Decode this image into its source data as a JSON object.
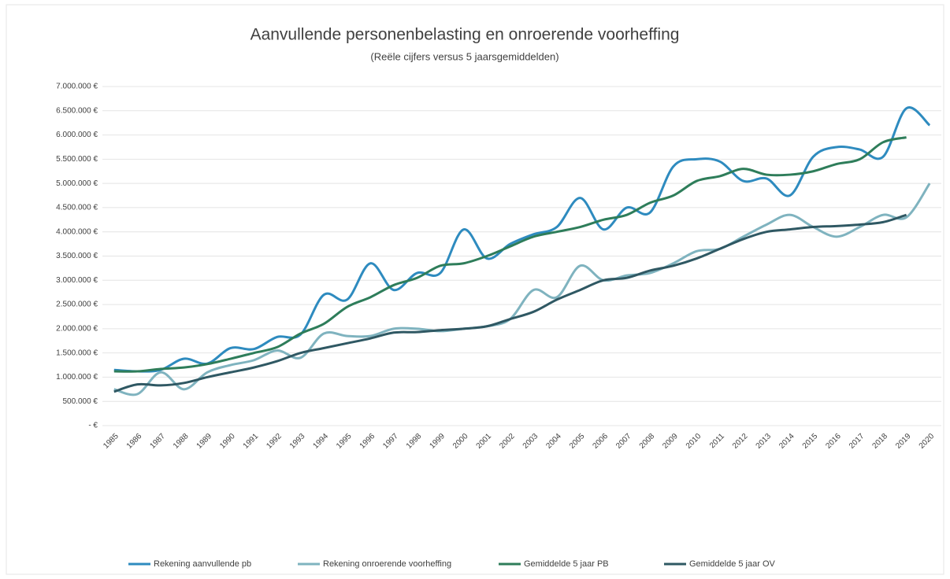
{
  "chart_data": {
    "type": "line",
    "title": "Aanvullende personenbelasting en onroerende voorheffing",
    "subtitle": "(Reële cijfers versus 5 jaarsgemiddelden)",
    "categories": [
      "1985",
      "1986",
      "1987",
      "1988",
      "1989",
      "1990",
      "1991",
      "1992",
      "1993",
      "1994",
      "1995",
      "1996",
      "1997",
      "1998",
      "1999",
      "2000",
      "2001",
      "2002",
      "2003",
      "2004",
      "2005",
      "2006",
      "2007",
      "2008",
      "2009",
      "2010",
      "2011",
      "2012",
      "2013",
      "2014",
      "2015",
      "2016",
      "2017",
      "2018",
      "2019",
      "2020"
    ],
    "series": [
      {
        "name": "Rekening aanvullende pb",
        "color": "#2e8bbf",
        "values": [
          1150000,
          1120000,
          1150000,
          1380000,
          1280000,
          1600000,
          1580000,
          1830000,
          1880000,
          2700000,
          2600000,
          3350000,
          2800000,
          3150000,
          3150000,
          4050000,
          3450000,
          3750000,
          3950000,
          4100000,
          4700000,
          4050000,
          4500000,
          4400000,
          5350000,
          5500000,
          5450000,
          5050000,
          5100000,
          4750000,
          5550000,
          5750000,
          5700000,
          5550000,
          6550000,
          6200000
        ]
      },
      {
        "name": "Rekening onroerende voorheffing",
        "color": "#7fb3bf",
        "values": [
          750000,
          650000,
          1100000,
          750000,
          1100000,
          1250000,
          1350000,
          1550000,
          1400000,
          1900000,
          1850000,
          1850000,
          2000000,
          2000000,
          1950000,
          2000000,
          2050000,
          2200000,
          2800000,
          2650000,
          3300000,
          3000000,
          3100000,
          3150000,
          3350000,
          3600000,
          3650000,
          3900000,
          4150000,
          4350000,
          4100000,
          3900000,
          4100000,
          4350000,
          4300000,
          5000000
        ]
      },
      {
        "name": "Gemiddelde 5 jaar PB",
        "color": "#2e7d5a",
        "values": [
          1120000,
          1120000,
          1170000,
          1200000,
          1270000,
          1380000,
          1500000,
          1620000,
          1900000,
          2100000,
          2450000,
          2650000,
          2900000,
          3050000,
          3300000,
          3350000,
          3500000,
          3700000,
          3900000,
          4000000,
          4100000,
          4250000,
          4350000,
          4600000,
          4750000,
          5050000,
          5150000,
          5300000,
          5180000,
          5180000,
          5250000,
          5400000,
          5500000,
          5850000,
          5950000,
          null
        ]
      },
      {
        "name": "Gemiddelde 5 jaar OV",
        "color": "#2f5863",
        "values": [
          700000,
          850000,
          830000,
          880000,
          1000000,
          1100000,
          1200000,
          1330000,
          1500000,
          1600000,
          1700000,
          1800000,
          1920000,
          1930000,
          1970000,
          2000000,
          2050000,
          2200000,
          2350000,
          2600000,
          2800000,
          3000000,
          3050000,
          3200000,
          3300000,
          3450000,
          3650000,
          3850000,
          4000000,
          4050000,
          4100000,
          4120000,
          4150000,
          4200000,
          4350000,
          null
        ]
      }
    ],
    "ylim": [
      0,
      7000000
    ],
    "yticks": [
      {
        "value": 0,
        "label": "- €"
      },
      {
        "value": 500000,
        "label": "500.000 €"
      },
      {
        "value": 1000000,
        "label": "1.000.000 €"
      },
      {
        "value": 1500000,
        "label": "1.500.000 €"
      },
      {
        "value": 2000000,
        "label": "2.000.000 €"
      },
      {
        "value": 2500000,
        "label": "2.500.000 €"
      },
      {
        "value": 3000000,
        "label": "3.000.000 €"
      },
      {
        "value": 3500000,
        "label": "3.500.000 €"
      },
      {
        "value": 4000000,
        "label": "4.000.000 €"
      },
      {
        "value": 4500000,
        "label": "4.500.000 €"
      },
      {
        "value": 5000000,
        "label": "5.000.000 €"
      },
      {
        "value": 5500000,
        "label": "5.500.000 €"
      },
      {
        "value": 6000000,
        "label": "6.000.000 €"
      },
      {
        "value": 6500000,
        "label": "6.500.000 €"
      },
      {
        "value": 7000000,
        "label": "7.000.000 €"
      }
    ],
    "grid": true,
    "legend": "bottom",
    "smooth": true
  }
}
